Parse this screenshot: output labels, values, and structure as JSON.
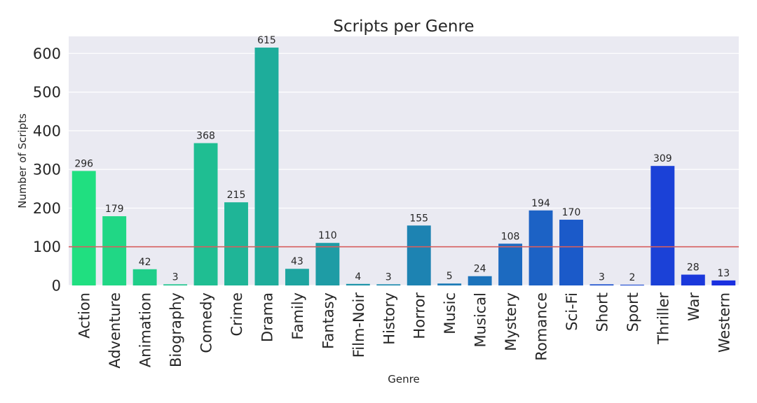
{
  "chart_data": {
    "type": "bar",
    "title": "Scripts per Genre",
    "xlabel": "Genre",
    "ylabel": "Number of Scripts",
    "categories": [
      "Action",
      "Adventure",
      "Animation",
      "Biography",
      "Comedy",
      "Crime",
      "Drama",
      "Family",
      "Fantasy",
      "Film-Noir",
      "History",
      "Horror",
      "Music",
      "Musical",
      "Mystery",
      "Romance",
      "Sci-Fi",
      "Short",
      "Sport",
      "Thriller",
      "War",
      "Western"
    ],
    "values": [
      296,
      179,
      42,
      3,
      368,
      215,
      615,
      43,
      110,
      4,
      3,
      155,
      5,
      24,
      108,
      194,
      170,
      3,
      2,
      309,
      28,
      13
    ],
    "data_labels": [
      "296",
      "179",
      "42",
      "3",
      "368",
      "215",
      "615",
      "43",
      "110",
      "4",
      "3",
      "155",
      "5",
      "24",
      "108",
      "194",
      "170",
      "3",
      "2",
      "309",
      "28",
      "13"
    ],
    "ylim": [
      0,
      644
    ],
    "yticks": [
      0,
      100,
      200,
      300,
      400,
      500,
      600
    ],
    "ytick_labels": [
      "0",
      "100",
      "200",
      "300",
      "400",
      "500",
      "600"
    ],
    "reference_line": {
      "y": 100,
      "color": "#d65f5f"
    },
    "grid": true,
    "background_color": "#eaeaf2",
    "palette": "winter_r"
  }
}
